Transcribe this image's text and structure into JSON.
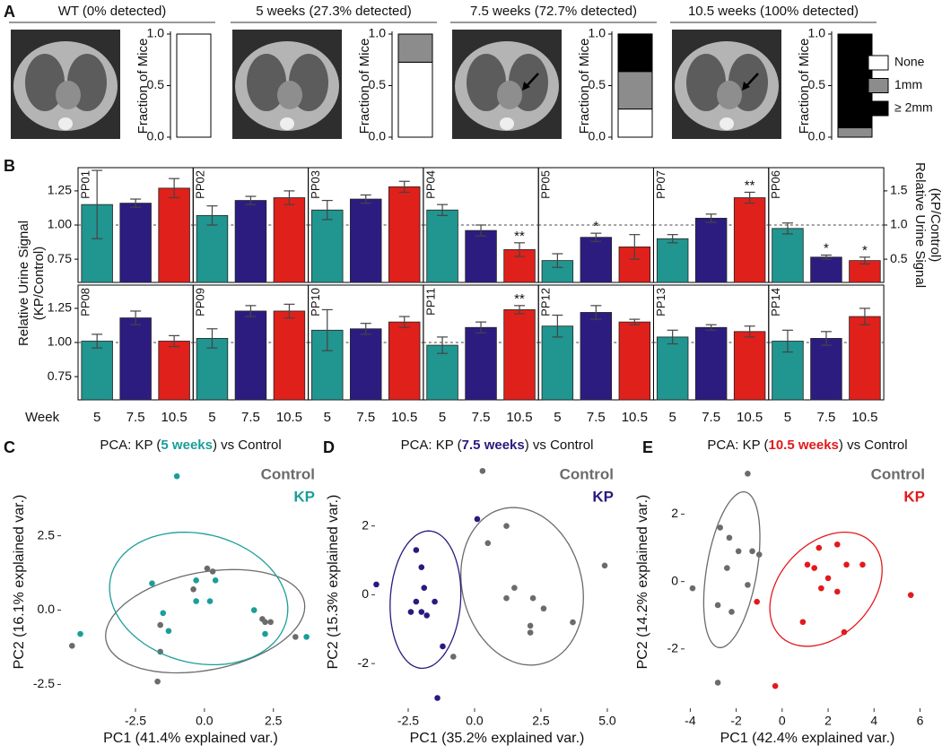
{
  "chart_data": [
    {
      "type": "stacked-bar",
      "panel": "A",
      "ylabel": "Fraction of Mice",
      "categories": [
        "WT (0% detected)",
        "5 weeks (27.3% detected)",
        "7.5 weeks (72.7% detected)",
        "10.5 weeks (100% detected)"
      ],
      "ylim": [
        0,
        1
      ],
      "yticks": [
        {
          "value": 0,
          "label": "0.0"
        },
        0.5,
        {
          "value": 1,
          "label": "1.0"
        }
      ],
      "series": [
        {
          "name": "None",
          "color": "#ffffff",
          "values": [
            1,
            0.727,
            0.273,
            0
          ]
        },
        {
          "name": "1mm",
          "color": "#8c8c8c",
          "values": [
            0,
            0.273,
            0.364,
            0.091
          ]
        },
        {
          "name": "≥ 2mm",
          "color": "#000000",
          "values": [
            0,
            0,
            0.364,
            0.909
          ]
        }
      ]
    },
    {
      "type": "bar-grid",
      "panel": "B",
      "ylabel": [
        "Relative Urine Signal",
        "(KP/Control)"
      ],
      "y2label": [
        "Relative Urine Signal",
        "(KP/Control)"
      ],
      "xlabel": "Week",
      "categories": [
        "5",
        "7.5",
        "10.5"
      ],
      "colors": [
        "#21958f",
        "#2d1c80",
        "#e0201b"
      ],
      "ylim": [
        0.58,
        1.42
      ],
      "yticks": [
        0.75,
        {
          "value": 1,
          "label": "1.00"
        },
        1.25
      ],
      "y2lim": [
        0.16,
        1.84
      ],
      "y2ticks": [
        0.5,
        {
          "value": 1,
          "label": "1.0"
        },
        1.5
      ],
      "reference": 1,
      "panels": [
        {
          "name": "PP01",
          "values": [
            1.15,
            1.16,
            1.27
          ],
          "errors": [
            0.25,
            0.03,
            0.07
          ],
          "annotations": [
            null,
            null,
            null
          ]
        },
        {
          "name": "PP02",
          "values": [
            1.07,
            1.18,
            1.2
          ],
          "errors": [
            0.07,
            0.03,
            0.05
          ],
          "annotations": [
            null,
            null,
            null
          ]
        },
        {
          "name": "PP03",
          "values": [
            1.11,
            1.19,
            1.28
          ],
          "errors": [
            0.07,
            0.03,
            0.04
          ],
          "annotations": [
            null,
            null,
            null
          ]
        },
        {
          "name": "PP04",
          "values": [
            1.11,
            0.96,
            0.82
          ],
          "errors": [
            0.04,
            0.04,
            0.05
          ],
          "annotations": [
            null,
            null,
            "**"
          ]
        },
        {
          "name": "PP05",
          "values": [
            0.74,
            0.91,
            0.84
          ],
          "errors": [
            0.05,
            0.03,
            0.09
          ],
          "annotations": [
            null,
            "*",
            null
          ]
        },
        {
          "name": "PP07",
          "values": [
            0.9,
            1.05,
            1.2
          ],
          "errors": [
            0.03,
            0.03,
            0.04
          ],
          "annotations": [
            null,
            null,
            "**"
          ]
        },
        {
          "name": "PP06",
          "axis": "y2",
          "values": [
            0.95,
            0.53,
            0.48
          ],
          "errors": [
            0.08,
            0.03,
            0.05
          ],
          "annotations": [
            null,
            "*",
            "*"
          ]
        },
        {
          "name": "PP08",
          "values": [
            1.01,
            1.18,
            1.01
          ],
          "errors": [
            0.05,
            0.05,
            0.04
          ],
          "annotations": [
            null,
            null,
            null
          ]
        },
        {
          "name": "PP09",
          "values": [
            1.03,
            1.23,
            1.23
          ],
          "errors": [
            0.07,
            0.04,
            0.05
          ],
          "annotations": [
            null,
            null,
            null
          ]
        },
        {
          "name": "PP10",
          "values": [
            1.09,
            1.1,
            1.15
          ],
          "errors": [
            0.15,
            0.04,
            0.04
          ],
          "annotations": [
            null,
            null,
            null
          ]
        },
        {
          "name": "PP11",
          "values": [
            0.98,
            1.11,
            1.24
          ],
          "errors": [
            0.06,
            0.04,
            0.03
          ],
          "annotations": [
            null,
            null,
            "**"
          ]
        },
        {
          "name": "PP12",
          "values": [
            1.12,
            1.22,
            1.15
          ],
          "errors": [
            0.08,
            0.05,
            0.02
          ],
          "annotations": [
            null,
            null,
            null
          ]
        },
        {
          "name": "PP13",
          "values": [
            1.04,
            1.11,
            1.08
          ],
          "errors": [
            0.05,
            0.02,
            0.04
          ],
          "annotations": [
            null,
            null,
            null
          ]
        },
        {
          "name": "PP14",
          "values": [
            1.01,
            1.03,
            1.19
          ],
          "errors": [
            0.08,
            0.05,
            0.06
          ],
          "annotations": [
            null,
            null,
            null
          ]
        }
      ]
    },
    {
      "type": "scatter",
      "panel": "C",
      "title": [
        "PCA: KP (",
        "5 weeks",
        ") vs Control"
      ],
      "xlabel": "PC1 (41.4% explained var.)",
      "ylabel": "PC2 (16.1% explained var.)",
      "xlim": [
        -5.2,
        4.2
      ],
      "ylim": [
        -3.3,
        5.2
      ],
      "xticks": [
        -2.5,
        {
          "value": 0,
          "label": "0.0"
        },
        2.5
      ],
      "yticks": [
        -2.5,
        {
          "value": 0,
          "label": "0.0"
        },
        2.5
      ],
      "series": [
        {
          "name": "Control",
          "color": "#6b6b6b",
          "x": [
            -4.8,
            -1.6,
            -1.6,
            -1.7,
            -0.4,
            0.1,
            0.3,
            2.1,
            2.2,
            2.4,
            3.3
          ],
          "values": [
            -1.2,
            -0.5,
            -1.4,
            -2.4,
            0.7,
            1.4,
            1.3,
            -0.3,
            -0.4,
            -0.4,
            -0.9
          ]
        },
        {
          "name": "KP",
          "color": "#1b9e98",
          "x": [
            -4.5,
            -1.0,
            -1.9,
            -1.5,
            -1.3,
            -0.3,
            -0.3,
            0.2,
            0.4,
            1.8,
            2.2,
            3.7
          ],
          "values": [
            -0.8,
            4.5,
            0.9,
            -0.1,
            -0.7,
            1.0,
            0.3,
            0.3,
            1.0,
            0.0,
            -0.8,
            -0.9
          ]
        }
      ]
    },
    {
      "type": "scatter",
      "panel": "D",
      "title": [
        "PCA: KP (",
        "7.5 weeks",
        ") vs Control"
      ],
      "xlabel": "PC1 (35.2% explained var.)",
      "ylabel": "PC2 (15.3% explained var.)",
      "xlim": [
        -3.75,
        5.44
      ],
      "ylim": [
        -3.3,
        4.05
      ],
      "xticks": [
        -2.5,
        {
          "value": 0,
          "label": "0.0"
        },
        2.5,
        {
          "value": 5,
          "label": "5.0"
        }
      ],
      "yticks": [
        -2,
        0,
        2
      ],
      "series": [
        {
          "name": "Control",
          "color": "#6b6b6b",
          "x": [
            0.3,
            1.2,
            0.5,
            1.5,
            2.2,
            2.6,
            2.1,
            2.1,
            3.7,
            4.9,
            -0.8,
            1.2
          ],
          "values": [
            3.6,
            2.0,
            1.5,
            0.2,
            -0.1,
            -0.4,
            -0.9,
            -1.1,
            -0.8,
            0.85,
            -1.8,
            -0.1
          ]
        },
        {
          "name": "KP",
          "color": "#2a1a7e",
          "x": [
            -3.7,
            -2.2,
            -2.0,
            -1.9,
            -2.2,
            -2.0,
            -1.8,
            -1.5,
            -1.2,
            -1.4,
            0.1,
            -2.4
          ],
          "values": [
            0.3,
            1.3,
            0.8,
            0.2,
            -0.2,
            -0.5,
            -0.6,
            -0.2,
            -1.5,
            -3.0,
            2.2,
            -0.5
          ]
        }
      ]
    },
    {
      "type": "scatter",
      "panel": "E",
      "title": [
        "PCA: KP (",
        "10.5 weeks",
        ") vs Control"
      ],
      "xlabel": "PC1 (42.4% explained var.)",
      "ylabel": "PC2 (14.2% explained var.)",
      "xlim": [
        -4.25,
        6.45
      ],
      "ylim": [
        -3.76,
        3.74
      ],
      "xticks": [
        -4,
        -2,
        0,
        2,
        4,
        6
      ],
      "yticks": [
        -2,
        0,
        2
      ],
      "series": [
        {
          "name": "Control",
          "color": "#6b6b6b",
          "x": [
            -1.5,
            -2.7,
            -2.3,
            -1.9,
            -1.3,
            -1.0,
            -3.9,
            -2.8,
            -2.2,
            -2.4,
            -1.5,
            -2.8
          ],
          "values": [
            3.2,
            1.6,
            1.3,
            0.9,
            0.9,
            0.8,
            -0.2,
            -0.7,
            -0.9,
            0.4,
            -0.1,
            -3.0
          ]
        },
        {
          "name": "KP",
          "color": "#e3191c",
          "x": [
            2.4,
            1.6,
            1.1,
            1.4,
            2.8,
            3.5,
            2.0,
            2.4,
            1.7,
            5.6,
            0.9,
            2.7,
            -1.1,
            -0.3
          ],
          "values": [
            1.1,
            1.0,
            0.5,
            0.4,
            0.5,
            0.5,
            0.1,
            -0.3,
            -0.2,
            -0.4,
            -1.2,
            -1.5,
            -0.6,
            -3.1
          ]
        }
      ]
    }
  ]
}
